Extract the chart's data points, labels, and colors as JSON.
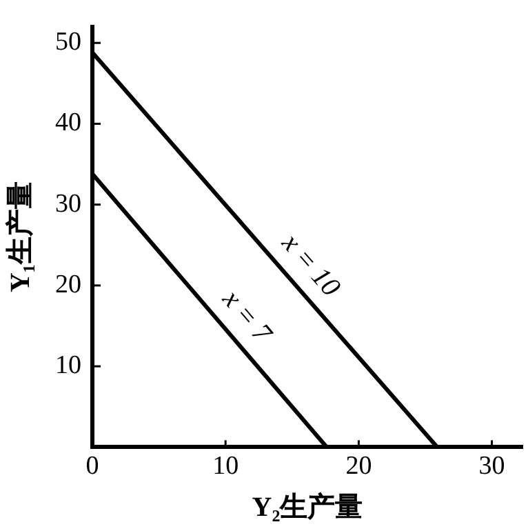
{
  "chart_data": {
    "type": "line",
    "xlabel": "Y₂生产量",
    "ylabel": "Y₁生产量",
    "xlim": [
      0,
      32.3
    ],
    "ylim": [
      0,
      52
    ],
    "xticks": [
      0,
      10,
      20,
      30
    ],
    "yticks": [
      10,
      20,
      30,
      40,
      50
    ],
    "grid": false,
    "legend": false,
    "marker": "none",
    "line_style": "solid",
    "series": [
      {
        "color": "#000000",
        "x": [
          0,
          25.9
        ],
        "values": [
          48.8,
          0
        ]
      },
      {
        "color": "#000000",
        "x": [
          0,
          17.6
        ],
        "values": [
          33.8,
          0
        ]
      }
    ],
    "annotations": [
      "x = 10",
      "x = 7"
    ]
  }
}
